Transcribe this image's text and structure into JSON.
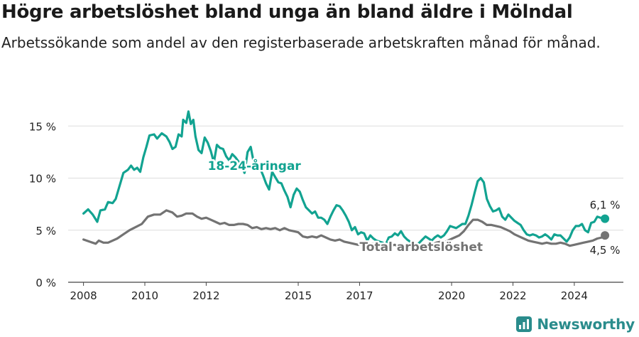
{
  "title": "Högre arbetslöshet bland unga än bland äldre i Mölndal",
  "subtitle": "Arbetssökande som andel av den registerbaserade arbetskraften månad för månad.",
  "brand": "Newsworthy",
  "colors": {
    "youth": "#12a391",
    "total": "#737373",
    "grid": "#dddddd",
    "brand": "#2a8c8c"
  },
  "chart_data": {
    "type": "line",
    "ylim": [
      0,
      17
    ],
    "xlim": [
      2007.5,
      2025.6
    ],
    "y_ticks": [
      {
        "value": 0,
        "label": "0 %"
      },
      {
        "value": 5,
        "label": "5 %"
      },
      {
        "value": 10,
        "label": "10 %"
      },
      {
        "value": 15,
        "label": "15 %"
      }
    ],
    "x_ticks": [
      {
        "value": 2008,
        "label": "2008"
      },
      {
        "value": 2010,
        "label": "2010"
      },
      {
        "value": 2012,
        "label": "2012"
      },
      {
        "value": 2015,
        "label": "2015"
      },
      {
        "value": 2017,
        "label": "2017"
      },
      {
        "value": 2020,
        "label": "2020"
      },
      {
        "value": 2022,
        "label": "2022"
      },
      {
        "value": 2024,
        "label": "2024"
      }
    ],
    "series": [
      {
        "name": "18-24-åringar",
        "end_label": "6,1 %",
        "points": [
          [
            2008.0,
            6.6
          ],
          [
            2008.15,
            7.0
          ],
          [
            2008.3,
            6.5
          ],
          [
            2008.45,
            5.8
          ],
          [
            2008.55,
            6.9
          ],
          [
            2008.7,
            7.0
          ],
          [
            2008.8,
            7.7
          ],
          [
            2008.95,
            7.6
          ],
          [
            2009.05,
            8.0
          ],
          [
            2009.15,
            9.0
          ],
          [
            2009.3,
            10.5
          ],
          [
            2009.45,
            10.8
          ],
          [
            2009.55,
            11.2
          ],
          [
            2009.65,
            10.8
          ],
          [
            2009.75,
            11.0
          ],
          [
            2009.85,
            10.6
          ],
          [
            2009.95,
            12.0
          ],
          [
            2010.05,
            13.0
          ],
          [
            2010.15,
            14.1
          ],
          [
            2010.3,
            14.2
          ],
          [
            2010.4,
            13.8
          ],
          [
            2010.55,
            14.3
          ],
          [
            2010.7,
            14.0
          ],
          [
            2010.8,
            13.5
          ],
          [
            2010.9,
            12.8
          ],
          [
            2011.0,
            13.0
          ],
          [
            2011.05,
            13.6
          ],
          [
            2011.1,
            14.2
          ],
          [
            2011.2,
            14.0
          ],
          [
            2011.25,
            15.6
          ],
          [
            2011.35,
            15.3
          ],
          [
            2011.42,
            16.4
          ],
          [
            2011.5,
            15.2
          ],
          [
            2011.58,
            15.6
          ],
          [
            2011.65,
            14.0
          ],
          [
            2011.75,
            12.7
          ],
          [
            2011.85,
            12.4
          ],
          [
            2011.95,
            13.9
          ],
          [
            2012.05,
            13.4
          ],
          [
            2012.15,
            12.6
          ],
          [
            2012.25,
            11.5
          ],
          [
            2012.35,
            13.2
          ],
          [
            2012.45,
            12.9
          ],
          [
            2012.55,
            12.8
          ],
          [
            2012.65,
            12.1
          ],
          [
            2012.75,
            11.7
          ],
          [
            2012.85,
            12.3
          ],
          [
            2012.95,
            12.0
          ],
          [
            2013.05,
            11.6
          ],
          [
            2013.15,
            11.2
          ],
          [
            2013.25,
            10.5
          ],
          [
            2013.35,
            12.5
          ],
          [
            2013.45,
            13.0
          ],
          [
            2013.55,
            11.5
          ],
          [
            2013.65,
            11.2
          ],
          [
            2013.75,
            11.0
          ],
          [
            2013.85,
            10.3
          ],
          [
            2013.95,
            9.5
          ],
          [
            2014.05,
            8.9
          ],
          [
            2014.15,
            10.6
          ],
          [
            2014.25,
            10.1
          ],
          [
            2014.35,
            9.6
          ],
          [
            2014.45,
            9.5
          ],
          [
            2014.55,
            8.8
          ],
          [
            2014.65,
            8.2
          ],
          [
            2014.75,
            7.2
          ],
          [
            2014.85,
            8.4
          ],
          [
            2014.95,
            9.0
          ],
          [
            2015.05,
            8.7
          ],
          [
            2015.15,
            7.9
          ],
          [
            2015.25,
            7.2
          ],
          [
            2015.35,
            6.9
          ],
          [
            2015.45,
            6.6
          ],
          [
            2015.55,
            6.8
          ],
          [
            2015.65,
            6.2
          ],
          [
            2015.75,
            6.2
          ],
          [
            2015.85,
            6.0
          ],
          [
            2015.95,
            5.6
          ],
          [
            2016.05,
            6.3
          ],
          [
            2016.15,
            6.9
          ],
          [
            2016.25,
            7.4
          ],
          [
            2016.35,
            7.3
          ],
          [
            2016.45,
            6.9
          ],
          [
            2016.55,
            6.4
          ],
          [
            2016.65,
            5.8
          ],
          [
            2016.75,
            5.0
          ],
          [
            2016.85,
            5.3
          ],
          [
            2016.95,
            4.6
          ],
          [
            2017.05,
            4.8
          ],
          [
            2017.15,
            4.7
          ],
          [
            2017.25,
            4.0
          ],
          [
            2017.35,
            4.5
          ],
          [
            2017.45,
            4.2
          ],
          [
            2017.55,
            4.0
          ],
          [
            2017.65,
            3.9
          ],
          [
            2017.75,
            3.8
          ],
          [
            2017.85,
            3.6
          ],
          [
            2017.95,
            4.3
          ],
          [
            2018.05,
            4.4
          ],
          [
            2018.15,
            4.7
          ],
          [
            2018.25,
            4.5
          ],
          [
            2018.35,
            4.9
          ],
          [
            2018.45,
            4.4
          ],
          [
            2018.55,
            4.1
          ],
          [
            2018.65,
            3.9
          ],
          [
            2018.75,
            3.8
          ],
          [
            2018.85,
            3.6
          ],
          [
            2018.95,
            3.8
          ],
          [
            2019.05,
            4.1
          ],
          [
            2019.15,
            4.4
          ],
          [
            2019.25,
            4.2
          ],
          [
            2019.35,
            4.0
          ],
          [
            2019.45,
            4.3
          ],
          [
            2019.55,
            4.5
          ],
          [
            2019.65,
            4.3
          ],
          [
            2019.75,
            4.5
          ],
          [
            2019.85,
            4.9
          ],
          [
            2019.95,
            5.4
          ],
          [
            2020.05,
            5.3
          ],
          [
            2020.15,
            5.2
          ],
          [
            2020.25,
            5.4
          ],
          [
            2020.35,
            5.6
          ],
          [
            2020.45,
            5.6
          ],
          [
            2020.55,
            6.4
          ],
          [
            2020.65,
            7.4
          ],
          [
            2020.75,
            8.6
          ],
          [
            2020.85,
            9.7
          ],
          [
            2020.95,
            10.0
          ],
          [
            2021.05,
            9.6
          ],
          [
            2021.15,
            8.0
          ],
          [
            2021.25,
            7.3
          ],
          [
            2021.35,
            6.8
          ],
          [
            2021.45,
            6.9
          ],
          [
            2021.55,
            7.1
          ],
          [
            2021.65,
            6.3
          ],
          [
            2021.75,
            6.0
          ],
          [
            2021.85,
            6.5
          ],
          [
            2021.95,
            6.2
          ],
          [
            2022.05,
            5.9
          ],
          [
            2022.15,
            5.7
          ],
          [
            2022.25,
            5.5
          ],
          [
            2022.35,
            5.0
          ],
          [
            2022.45,
            4.6
          ],
          [
            2022.55,
            4.5
          ],
          [
            2022.65,
            4.6
          ],
          [
            2022.75,
            4.5
          ],
          [
            2022.85,
            4.3
          ],
          [
            2022.95,
            4.4
          ],
          [
            2023.05,
            4.6
          ],
          [
            2023.15,
            4.4
          ],
          [
            2023.25,
            4.1
          ],
          [
            2023.35,
            4.6
          ],
          [
            2023.45,
            4.5
          ],
          [
            2023.55,
            4.5
          ],
          [
            2023.65,
            4.2
          ],
          [
            2023.75,
            3.9
          ],
          [
            2023.85,
            4.3
          ],
          [
            2023.95,
            5.0
          ],
          [
            2024.05,
            5.4
          ],
          [
            2024.15,
            5.4
          ],
          [
            2024.25,
            5.6
          ],
          [
            2024.35,
            5.0
          ],
          [
            2024.45,
            4.8
          ],
          [
            2024.55,
            5.7
          ],
          [
            2024.65,
            5.8
          ],
          [
            2024.75,
            6.3
          ],
          [
            2024.85,
            6.2
          ],
          [
            2025.0,
            6.1
          ]
        ]
      },
      {
        "name": "Total arbetslöshet",
        "end_label": "4,5 %",
        "points": [
          [
            2008.0,
            4.1
          ],
          [
            2008.2,
            3.9
          ],
          [
            2008.4,
            3.7
          ],
          [
            2008.5,
            4.0
          ],
          [
            2008.65,
            3.8
          ],
          [
            2008.8,
            3.8
          ],
          [
            2008.95,
            4.0
          ],
          [
            2009.1,
            4.2
          ],
          [
            2009.3,
            4.6
          ],
          [
            2009.5,
            5.0
          ],
          [
            2009.7,
            5.3
          ],
          [
            2009.9,
            5.6
          ],
          [
            2010.1,
            6.3
          ],
          [
            2010.3,
            6.5
          ],
          [
            2010.5,
            6.5
          ],
          [
            2010.7,
            6.9
          ],
          [
            2010.9,
            6.7
          ],
          [
            2011.05,
            6.3
          ],
          [
            2011.2,
            6.4
          ],
          [
            2011.35,
            6.6
          ],
          [
            2011.55,
            6.6
          ],
          [
            2011.7,
            6.3
          ],
          [
            2011.85,
            6.1
          ],
          [
            2012.0,
            6.2
          ],
          [
            2012.15,
            6.0
          ],
          [
            2012.3,
            5.8
          ],
          [
            2012.45,
            5.6
          ],
          [
            2012.6,
            5.7
          ],
          [
            2012.75,
            5.5
          ],
          [
            2012.9,
            5.5
          ],
          [
            2013.05,
            5.6
          ],
          [
            2013.2,
            5.6
          ],
          [
            2013.35,
            5.5
          ],
          [
            2013.5,
            5.2
          ],
          [
            2013.65,
            5.3
          ],
          [
            2013.8,
            5.1
          ],
          [
            2013.95,
            5.2
          ],
          [
            2014.1,
            5.1
          ],
          [
            2014.25,
            5.2
          ],
          [
            2014.4,
            5.0
          ],
          [
            2014.55,
            5.2
          ],
          [
            2014.7,
            5.0
          ],
          [
            2014.85,
            4.9
          ],
          [
            2015.0,
            4.8
          ],
          [
            2015.15,
            4.4
          ],
          [
            2015.3,
            4.3
          ],
          [
            2015.45,
            4.4
          ],
          [
            2015.6,
            4.3
          ],
          [
            2015.75,
            4.5
          ],
          [
            2015.9,
            4.3
          ],
          [
            2016.05,
            4.1
          ],
          [
            2016.2,
            4.0
          ],
          [
            2016.35,
            4.1
          ],
          [
            2016.5,
            3.9
          ],
          [
            2016.65,
            3.8
          ],
          [
            2016.8,
            3.7
          ],
          [
            2016.95,
            3.6
          ],
          [
            2017.1,
            3.7
          ],
          [
            2017.25,
            3.5
          ],
          [
            2017.4,
            3.7
          ],
          [
            2017.55,
            3.6
          ],
          [
            2017.7,
            3.5
          ],
          [
            2017.85,
            3.4
          ],
          [
            2018.0,
            3.5
          ],
          [
            2018.15,
            3.6
          ],
          [
            2018.3,
            3.4
          ],
          [
            2018.45,
            3.5
          ],
          [
            2018.6,
            3.4
          ],
          [
            2018.75,
            3.3
          ],
          [
            2018.9,
            3.4
          ],
          [
            2019.05,
            3.5
          ],
          [
            2019.2,
            3.6
          ],
          [
            2019.35,
            3.6
          ],
          [
            2019.5,
            3.8
          ],
          [
            2019.65,
            3.9
          ],
          [
            2019.8,
            3.9
          ],
          [
            2019.95,
            4.1
          ],
          [
            2020.1,
            4.3
          ],
          [
            2020.25,
            4.5
          ],
          [
            2020.4,
            4.9
          ],
          [
            2020.55,
            5.5
          ],
          [
            2020.7,
            6.0
          ],
          [
            2020.85,
            6.0
          ],
          [
            2021.0,
            5.8
          ],
          [
            2021.15,
            5.5
          ],
          [
            2021.3,
            5.5
          ],
          [
            2021.45,
            5.4
          ],
          [
            2021.6,
            5.3
          ],
          [
            2021.75,
            5.1
          ],
          [
            2021.9,
            4.9
          ],
          [
            2022.05,
            4.6
          ],
          [
            2022.2,
            4.4
          ],
          [
            2022.35,
            4.2
          ],
          [
            2022.5,
            4.0
          ],
          [
            2022.65,
            3.9
          ],
          [
            2022.8,
            3.8
          ],
          [
            2022.95,
            3.7
          ],
          [
            2023.1,
            3.8
          ],
          [
            2023.25,
            3.7
          ],
          [
            2023.4,
            3.7
          ],
          [
            2023.55,
            3.8
          ],
          [
            2023.7,
            3.7
          ],
          [
            2023.85,
            3.5
          ],
          [
            2024.0,
            3.6
          ],
          [
            2024.15,
            3.7
          ],
          [
            2024.3,
            3.8
          ],
          [
            2024.45,
            3.9
          ],
          [
            2024.6,
            4.0
          ],
          [
            2024.75,
            4.2
          ],
          [
            2024.9,
            4.3
          ],
          [
            2025.0,
            4.5
          ]
        ]
      }
    ]
  }
}
